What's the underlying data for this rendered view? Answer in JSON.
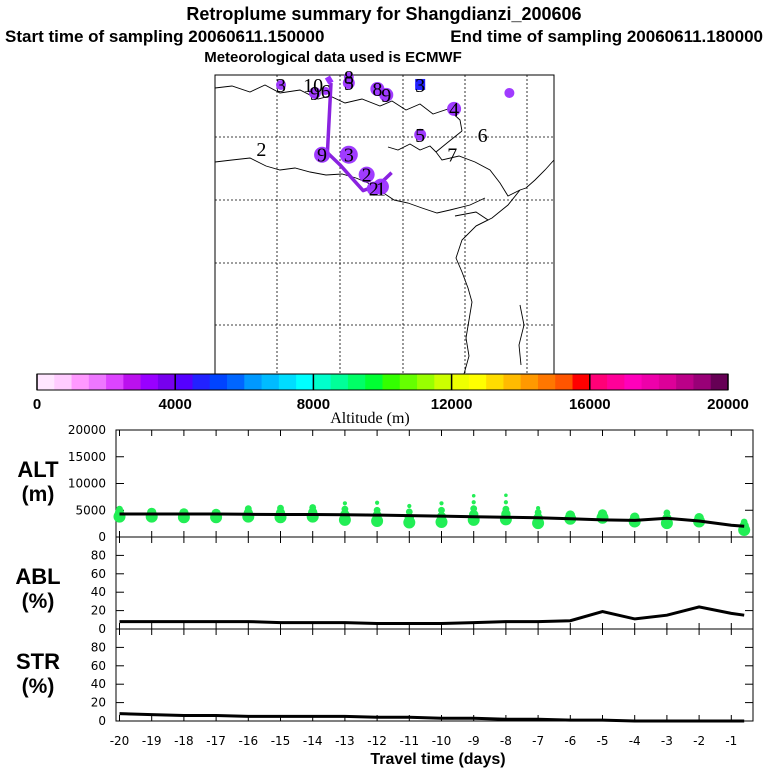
{
  "chart_data": [
    {
      "type": "map",
      "title": "Retroplume summary for Shangdianzi_200606",
      "subtitle_start": "Start time of sampling 20060611.150000",
      "subtitle_end": "End time of sampling 20060611.180000",
      "subtitle_met": "Meteorological data used is ECMWF",
      "trajectory_color": "#8a22e0",
      "plume_color": "#9b30ff",
      "clusters": [
        {
          "label": "3",
          "lon": 62,
          "lat": 20
        },
        {
          "label": "10",
          "lon": 80,
          "lat": 20
        },
        {
          "label": "9",
          "lon": 81,
          "lat": 16
        },
        {
          "label": "6",
          "lon": 87,
          "lat": 17
        },
        {
          "label": "8",
          "lon": 100,
          "lat": 24
        },
        {
          "label": "5",
          "lon": 100,
          "lat": 21
        },
        {
          "label": "8",
          "lon": 116,
          "lat": 18
        },
        {
          "label": "9",
          "lon": 121,
          "lat": 15
        },
        {
          "label": "3",
          "lon": 140,
          "lat": 20
        },
        {
          "label": "4",
          "lon": 159,
          "lat": 8
        },
        {
          "label": "5",
          "lon": 140,
          "lat": -5
        },
        {
          "label": "7",
          "lon": 158,
          "lat": -15
        },
        {
          "label": "6",
          "lon": 175,
          "lat": -5
        },
        {
          "label": "2",
          "lon": 51,
          "lat": -12
        },
        {
          "label": "9",
          "lon": 85,
          "lat": -15
        },
        {
          "label": "3",
          "lon": 100,
          "lat": -15
        },
        {
          "label": "2",
          "lon": 110,
          "lat": -25
        },
        {
          "label": "2",
          "lon": 114,
          "lat": -32
        },
        {
          "label": "1",
          "lon": 118,
          "lat": -32
        }
      ]
    },
    {
      "type": "colorbar",
      "xlabel": "Altitude (m)",
      "range": [
        0,
        20000
      ],
      "ticks": [
        0,
        4000,
        8000,
        12000,
        16000,
        20000
      ],
      "colors": [
        "#ffe6ff",
        "#ffccff",
        "#ff99ff",
        "#ee77ff",
        "#dd44ff",
        "#bb11ee",
        "#9900ff",
        "#7700ee",
        "#5500ff",
        "#2222ff",
        "#0044ff",
        "#0066ff",
        "#0099ff",
        "#00bbff",
        "#00ddff",
        "#00ffff",
        "#00ffcc",
        "#00ff99",
        "#00ff66",
        "#00ff33",
        "#33ff00",
        "#66ff00",
        "#99ff00",
        "#ccff00",
        "#eeff00",
        "#ffff00",
        "#ffdd00",
        "#ffbb00",
        "#ff9900",
        "#ff7700",
        "#ff5500",
        "#ff0000",
        "#ff0077",
        "#ff0099",
        "#ff00bb",
        "#ee00aa",
        "#dd0099",
        "#bb0088",
        "#990077",
        "#660055"
      ]
    },
    {
      "type": "scatter+line",
      "ylabel_top": "ALT",
      "ylabel_unit": "(m)",
      "ylim": [
        0,
        20000
      ],
      "yticks": [
        0,
        5000,
        10000,
        15000,
        20000
      ],
      "point_color": "#22ee55",
      "x": [
        -20,
        -19,
        -18,
        -17,
        -16,
        -15,
        -14,
        -13,
        -12,
        -11,
        -10,
        -9,
        -8,
        -7,
        -6,
        -5,
        -4,
        -3,
        -2,
        -1,
        -0.6
      ],
      "mean_alt": [
        4300,
        4300,
        4300,
        4300,
        4250,
        4200,
        4200,
        4150,
        4100,
        4000,
        3900,
        3800,
        3700,
        3600,
        3400,
        3200,
        3100,
        3500,
        3000,
        2200,
        2000
      ],
      "points": [
        {
          "x": -20,
          "y": [
            3800,
            4500,
            5200
          ]
        },
        {
          "x": -19,
          "y": [
            3800,
            4600
          ]
        },
        {
          "x": -18,
          "y": [
            3700,
            4500
          ]
        },
        {
          "x": -17,
          "y": [
            3700,
            4400
          ]
        },
        {
          "x": -16,
          "y": [
            3800,
            4500,
            5300
          ]
        },
        {
          "x": -15,
          "y": [
            3700,
            4500,
            5400
          ]
        },
        {
          "x": -14,
          "y": [
            3800,
            4600,
            5500
          ]
        },
        {
          "x": -13,
          "y": [
            3200,
            4200,
            5200,
            6300
          ]
        },
        {
          "x": -12,
          "y": [
            3000,
            4000,
            5000,
            6400
          ]
        },
        {
          "x": -11,
          "y": [
            2700,
            3600,
            4700,
            5800
          ]
        },
        {
          "x": -10,
          "y": [
            2800,
            3800,
            5000,
            6300
          ]
        },
        {
          "x": -9,
          "y": [
            3200,
            4200,
            5300,
            6500,
            7700
          ]
        },
        {
          "x": -8,
          "y": [
            3300,
            4300,
            5200,
            6500,
            7800
          ]
        },
        {
          "x": -7,
          "y": [
            2600,
            3600,
            4600,
            5400
          ]
        },
        {
          "x": -6,
          "y": [
            3400,
            4100
          ]
        },
        {
          "x": -5,
          "y": [
            3600,
            4300
          ]
        },
        {
          "x": -4,
          "y": [
            2900,
            3700
          ]
        },
        {
          "x": -3,
          "y": [
            2600,
            3500,
            4500
          ]
        },
        {
          "x": -2,
          "y": [
            2900,
            3600
          ]
        },
        {
          "x": -0.6,
          "y": [
            1300,
            2100,
            2800
          ]
        }
      ]
    },
    {
      "type": "line",
      "ylabel_top": "ABL",
      "ylabel_unit": "(%)",
      "ylim": [
        0,
        100
      ],
      "yticks": [
        0,
        20,
        40,
        60,
        80
      ],
      "x": [
        -20,
        -19,
        -18,
        -17,
        -16,
        -15,
        -14,
        -13,
        -12,
        -11,
        -10,
        -9,
        -8,
        -7,
        -6,
        -5,
        -4,
        -3,
        -2,
        -1,
        -0.6
      ],
      "y": [
        8,
        8,
        8,
        8,
        8,
        7,
        7,
        7,
        6,
        6,
        6,
        7,
        8,
        8,
        9,
        19,
        11,
        15,
        24,
        17,
        15
      ]
    },
    {
      "type": "line",
      "ylabel_top": "STR",
      "ylabel_unit": "(%)",
      "ylim": [
        0,
        100
      ],
      "yticks": [
        0,
        20,
        40,
        60,
        80
      ],
      "xlabel": "Travel time (days)",
      "xticks": [
        -20,
        -19,
        -18,
        -17,
        -16,
        -15,
        -14,
        -13,
        -12,
        -11,
        -10,
        -9,
        -8,
        -7,
        -6,
        -5,
        -4,
        -3,
        -2,
        -1
      ],
      "x": [
        -20,
        -19,
        -18,
        -17,
        -16,
        -15,
        -14,
        -13,
        -12,
        -11,
        -10,
        -9,
        -8,
        -7,
        -6,
        -5,
        -4,
        -3,
        -2,
        -1,
        -0.6
      ],
      "y": [
        8,
        7,
        6,
        6,
        5,
        5,
        5,
        5,
        4,
        4,
        3,
        3,
        2,
        2,
        1,
        1,
        0,
        0,
        0,
        0,
        0
      ]
    }
  ]
}
